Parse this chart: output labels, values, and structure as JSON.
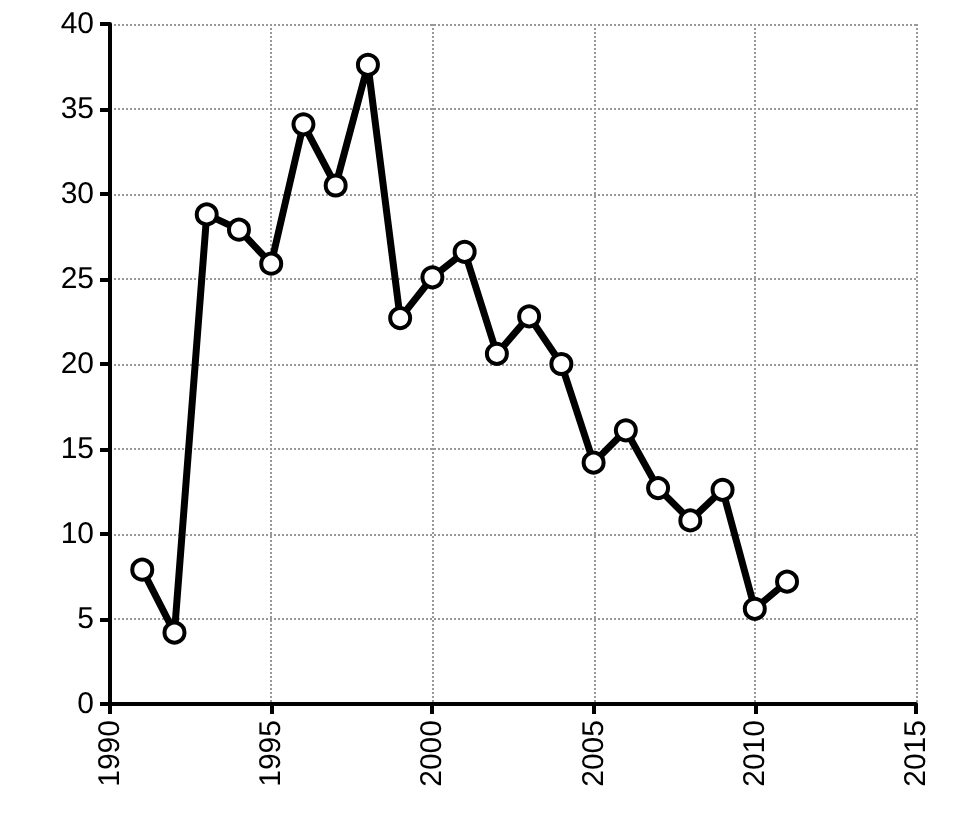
{
  "chart_data": {
    "type": "line",
    "x": [
      1991,
      1992,
      1993,
      1994,
      1995,
      1996,
      1997,
      1998,
      1999,
      2000,
      2001,
      2002,
      2003,
      2004,
      2005,
      2006,
      2007,
      2008,
      2009,
      2010,
      2011
    ],
    "series": [
      {
        "color": "#000000",
        "values": [
          7.9,
          4.2,
          28.8,
          27.9,
          25.9,
          34.1,
          30.5,
          37.6,
          22.7,
          25.1,
          26.6,
          20.6,
          22.8,
          20,
          14.2,
          16.1,
          12.7,
          10.8,
          12.6,
          5.6,
          7.2
        ]
      }
    ],
    "xlim": [
      1990,
      2015
    ],
    "xticks": [
      1990,
      1995,
      2000,
      2005,
      2010,
      2015
    ],
    "ylim": [
      0,
      40
    ],
    "yticks": [
      0,
      5,
      10,
      15,
      20,
      25,
      30,
      35,
      40
    ],
    "grid": true,
    "marker": "circle",
    "line_style": "solid"
  }
}
